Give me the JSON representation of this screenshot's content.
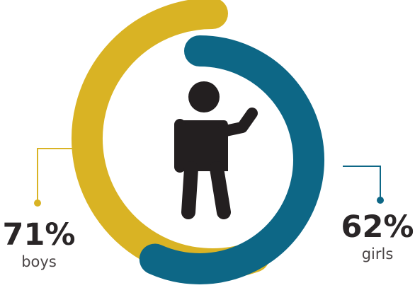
{
  "chart_data": {
    "type": "donut",
    "title": "",
    "series": [
      {
        "name": "boys",
        "value": 71,
        "unit": "%",
        "color": "#d9b324"
      },
      {
        "name": "girls",
        "value": 62,
        "unit": "%",
        "color": "#0d6786"
      }
    ],
    "labels": {
      "boys": {
        "value_text": "71%",
        "name_text": "boys"
      },
      "girls": {
        "value_text": "62%",
        "name_text": "girls"
      }
    },
    "center_icon": "child-figure-waving-icon",
    "icon_color": "#231f20",
    "leader_line": true
  }
}
